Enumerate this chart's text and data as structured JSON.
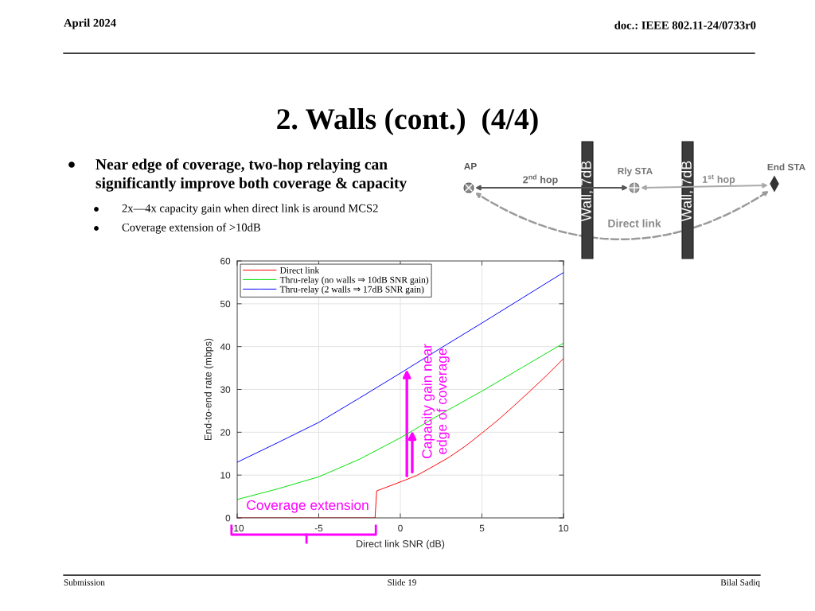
{
  "chart_data": {
    "type": "line",
    "title": "2. Walls (cont.)  (4/4)",
    "xlabel": "Direct link SNR (dB)",
    "ylabel": "End-to-end rate (mbps)",
    "x": [
      -10,
      -7.5,
      -5,
      -2.5,
      0,
      2.5,
      5,
      7.5,
      10
    ],
    "series": [
      {
        "name": "Direct link",
        "color": "#ff0000",
        "x": [
          -10,
          -1.55,
          -1.45,
          0,
          1,
          2,
          3,
          4,
          5,
          6,
          7,
          8,
          9,
          10
        ],
        "values": [
          0,
          0,
          6.3,
          8.4,
          9.9,
          12.0,
          14.2,
          16.8,
          19.8,
          22.9,
          26.3,
          29.8,
          33.4,
          37.2
        ]
      },
      {
        "name": "Thru-relay (no walls ⇒ 10dB SNR gain)",
        "color": "#00e000",
        "values": [
          4.3,
          6.8,
          9.6,
          13.7,
          18.7,
          24.3,
          29.6,
          35.2,
          40.8
        ]
      },
      {
        "name": "Thru-relay (2 walls ⇒ 17dB SNR gain)",
        "color": "#0000ff",
        "values": [
          13.0,
          17.6,
          22.3,
          28.0,
          33.8,
          39.7,
          45.5,
          51.4,
          57.3
        ]
      }
    ],
    "xlim": [
      -10,
      10
    ],
    "xticks": [
      -10,
      -5,
      0,
      5,
      10
    ],
    "ylim": [
      0,
      60
    ],
    "yticks": [
      0,
      10,
      20,
      30,
      40,
      50,
      60
    ],
    "grid": true,
    "legend": "top left",
    "line_style": "solid",
    "annotations": [
      "April 2024",
      "doc.: IEEE 802.11-24/0733r0",
      "Near edge of coverage, two-hop relaying can\nsignificantly improve both coverage & capacity",
      "2x—4x capacity gain when direct link is around MCS2",
      "Coverage extension of >10dB",
      "AP",
      "2$^{nd}$ hop",
      "Rly STA",
      "Wall, 7dB",
      "Wall, 7dB",
      "1$^{st}$ hop",
      "End STA",
      "Direct link",
      {
        "text": "Capacity gain near\nedge of coverage",
        "x": 0.4,
        "y": 34.7
      },
      {
        "text": "Coverage extension",
        "x": -5.75,
        "y": 0
      },
      "Submission",
      "Slide 19",
      "Bilal Sadiq"
    ]
  }
}
